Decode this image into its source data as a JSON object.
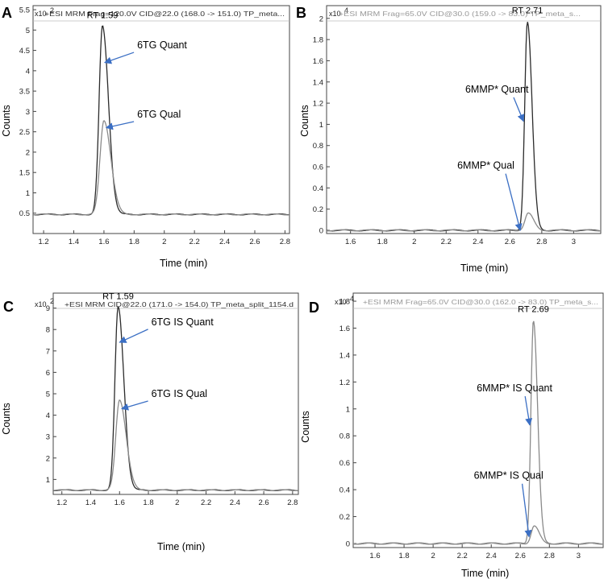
{
  "figure_colors": {
    "arrow": "#3b6fc4",
    "trace_dark": "#2b2b2b",
    "trace_light": "#8a8a8a"
  },
  "chart_data": [
    {
      "id": "A",
      "panel_label": "A",
      "type": "line",
      "header": "+ESI MRM Frag=120.0V CID@22.0 (168.0 -> 151.0) TP_meta...",
      "header_style": "dark",
      "y_exponent_label": "x10",
      "y_exponent": "2",
      "xlabel": "Time (min)",
      "ylabel": "Counts",
      "xlim": [
        1.13,
        2.83
      ],
      "ylim": [
        0,
        5.6
      ],
      "xticks": [
        1.2,
        1.4,
        1.6,
        1.8,
        2.0,
        2.2,
        2.4,
        2.6,
        2.8
      ],
      "xtick_labels": [
        "1.2",
        "1.4",
        "1.6",
        "1.8",
        "2",
        "2.2",
        "2.4",
        "2.6",
        "2.8"
      ],
      "yticks": [
        0.5,
        1,
        1.5,
        2,
        2.5,
        3,
        3.5,
        4,
        4.5,
        5,
        5.5
      ],
      "ytick_labels": [
        "0.5",
        "1",
        "1.5",
        "2",
        "2.5",
        "3",
        "3.5",
        "4",
        "4.5",
        "5",
        "5.5"
      ],
      "rt_label": "RT 1.59",
      "rt": 1.59,
      "series": [
        {
          "name": "6TG Quant",
          "peak_x": 1.59,
          "peak_y": 5.1,
          "baseline": 0.47,
          "sigma": 0.022,
          "tail": 0.018,
          "color": "dark"
        },
        {
          "name": "6TG Qual",
          "peak_x": 1.6,
          "peak_y": 2.78,
          "baseline": 0.47,
          "sigma": 0.026,
          "tail": 0.02,
          "color": "light"
        }
      ],
      "annotations": [
        {
          "text": "6TG Quant",
          "label_x": 1.82,
          "label_y": 4.55,
          "arrow_to": [
            1.605,
            4.2
          ]
        },
        {
          "text": "6TG Qual",
          "label_x": 1.82,
          "label_y": 2.85,
          "arrow_to": [
            1.615,
            2.6
          ]
        }
      ]
    },
    {
      "id": "B",
      "panel_label": "B",
      "type": "line",
      "header": "+ESI MRM Frag=65.0V CID@30.0 (159.0 -> 83.0) TP_meta_s...",
      "header_style": "light",
      "y_exponent_label": "x10",
      "y_exponent": "4",
      "xlabel": "Time (min)",
      "ylabel": "Counts",
      "xlim": [
        1.45,
        3.17
      ],
      "ylim": [
        -0.03,
        2.12
      ],
      "xticks": [
        1.6,
        1.8,
        2.0,
        2.2,
        2.4,
        2.6,
        2.8,
        3.0
      ],
      "xtick_labels": [
        "1.6",
        "1.8",
        "2",
        "2.2",
        "2.4",
        "2.6",
        "2.8",
        "3"
      ],
      "yticks": [
        0,
        0.2,
        0.4,
        0.6,
        0.8,
        1,
        1.2,
        1.4,
        1.6,
        1.8,
        2
      ],
      "ytick_labels": [
        "0",
        "0.2",
        "0.4",
        "0.6",
        "0.8",
        "1",
        "1.2",
        "1.4",
        "1.6",
        "1.8",
        "2"
      ],
      "rt_label": "RT 2.71",
      "rt": 2.71,
      "series": [
        {
          "name": "6MMP* Quant",
          "peak_x": 2.71,
          "peak_y": 1.97,
          "baseline": 0.0,
          "sigma": 0.017,
          "tail": 0.012,
          "color": "dark"
        },
        {
          "name": "6MMP* Qual",
          "peak_x": 2.715,
          "peak_y": 0.16,
          "baseline": 0.0,
          "sigma": 0.02,
          "tail": 0.014,
          "color": "light"
        }
      ],
      "annotations": [
        {
          "text": "6MMP* Quant",
          "label_x": 2.32,
          "label_y": 1.3,
          "arrow_to": [
            2.685,
            1.03
          ]
        },
        {
          "text": "6MMP* Qual",
          "label_x": 2.27,
          "label_y": 0.58,
          "arrow_to": [
            2.665,
            0.0
          ]
        }
      ]
    },
    {
      "id": "C",
      "panel_label": "C",
      "type": "line",
      "header": "+ESI MRM CID@22.0 (171.0 -> 154.0) TP_meta_split_1154.d",
      "header_style": "dark",
      "y_exponent_label": "x10",
      "y_exponent": "2",
      "xlabel": "Time (min)",
      "ylabel": "Counts",
      "xlim": [
        1.14,
        2.84
      ],
      "ylim": [
        0.3,
        9.7
      ],
      "xticks": [
        1.2,
        1.4,
        1.6,
        1.8,
        2.0,
        2.2,
        2.4,
        2.6,
        2.8
      ],
      "xtick_labels": [
        "1.2",
        "1.4",
        "1.6",
        "1.8",
        "2",
        "2.2",
        "2.4",
        "2.6",
        "2.8"
      ],
      "yticks": [
        1,
        2,
        3,
        4,
        5,
        6,
        7,
        8,
        9
      ],
      "ytick_labels": [
        "1",
        "2",
        "3",
        "4",
        "5",
        "6",
        "7",
        "8",
        "9"
      ],
      "rt_label": "RT 1.59",
      "rt": 1.59,
      "series": [
        {
          "name": "6TG IS Quant",
          "peak_x": 1.59,
          "peak_y": 9.05,
          "baseline": 0.5,
          "sigma": 0.022,
          "tail": 0.018,
          "color": "dark"
        },
        {
          "name": "6TG IS Qual",
          "peak_x": 1.6,
          "peak_y": 4.72,
          "baseline": 0.5,
          "sigma": 0.026,
          "tail": 0.02,
          "color": "light"
        }
      ],
      "annotations": [
        {
          "text": "6TG IS Quant",
          "label_x": 1.82,
          "label_y": 8.2,
          "arrow_to": [
            1.6,
            7.4
          ]
        },
        {
          "text": "6TG IS Qual",
          "label_x": 1.82,
          "label_y": 4.85,
          "arrow_to": [
            1.615,
            4.3
          ]
        }
      ]
    },
    {
      "id": "D",
      "panel_label": "D",
      "type": "line",
      "header": "+ESI MRM Frag=65.0V CID@30.0 (162.0 -> 83.0) TP_meta_s...",
      "header_style": "light",
      "y_exponent_label": "x10",
      "y_exponent": "4",
      "xlabel": "Time (min)",
      "ylabel": "Counts",
      "xlim": [
        1.45,
        3.17
      ],
      "ylim": [
        -0.03,
        1.86
      ],
      "xticks": [
        1.6,
        1.8,
        2.0,
        2.2,
        2.4,
        2.6,
        2.8,
        3.0
      ],
      "xtick_labels": [
        "1.6",
        "1.8",
        "2",
        "2.2",
        "2.4",
        "2.6",
        "2.8",
        "3"
      ],
      "yticks": [
        0,
        0.2,
        0.4,
        0.6,
        0.8,
        1,
        1.2,
        1.4,
        1.6,
        1.8
      ],
      "ytick_labels": [
        "0",
        "0.2",
        "0.4",
        "0.6",
        "0.8",
        "1",
        "1.2",
        "1.4",
        "1.6",
        "1.8"
      ],
      "rt_label": "RT 2.69",
      "rt": 2.69,
      "series": [
        {
          "name": "6MMP* IS Quant",
          "peak_x": 2.69,
          "peak_y": 1.66,
          "baseline": 0.0,
          "sigma": 0.017,
          "tail": 0.012,
          "color": "light"
        },
        {
          "name": "6MMP* IS Qual",
          "peak_x": 2.695,
          "peak_y": 0.13,
          "baseline": 0.0,
          "sigma": 0.02,
          "tail": 0.014,
          "color": "light"
        }
      ],
      "annotations": [
        {
          "text": "6MMP* IS Quant",
          "label_x": 2.3,
          "label_y": 1.13,
          "arrow_to": [
            2.665,
            0.88
          ]
        },
        {
          "text": "6MMP* IS Qual",
          "label_x": 2.28,
          "label_y": 0.48,
          "arrow_to": [
            2.66,
            0.05
          ]
        }
      ]
    }
  ]
}
